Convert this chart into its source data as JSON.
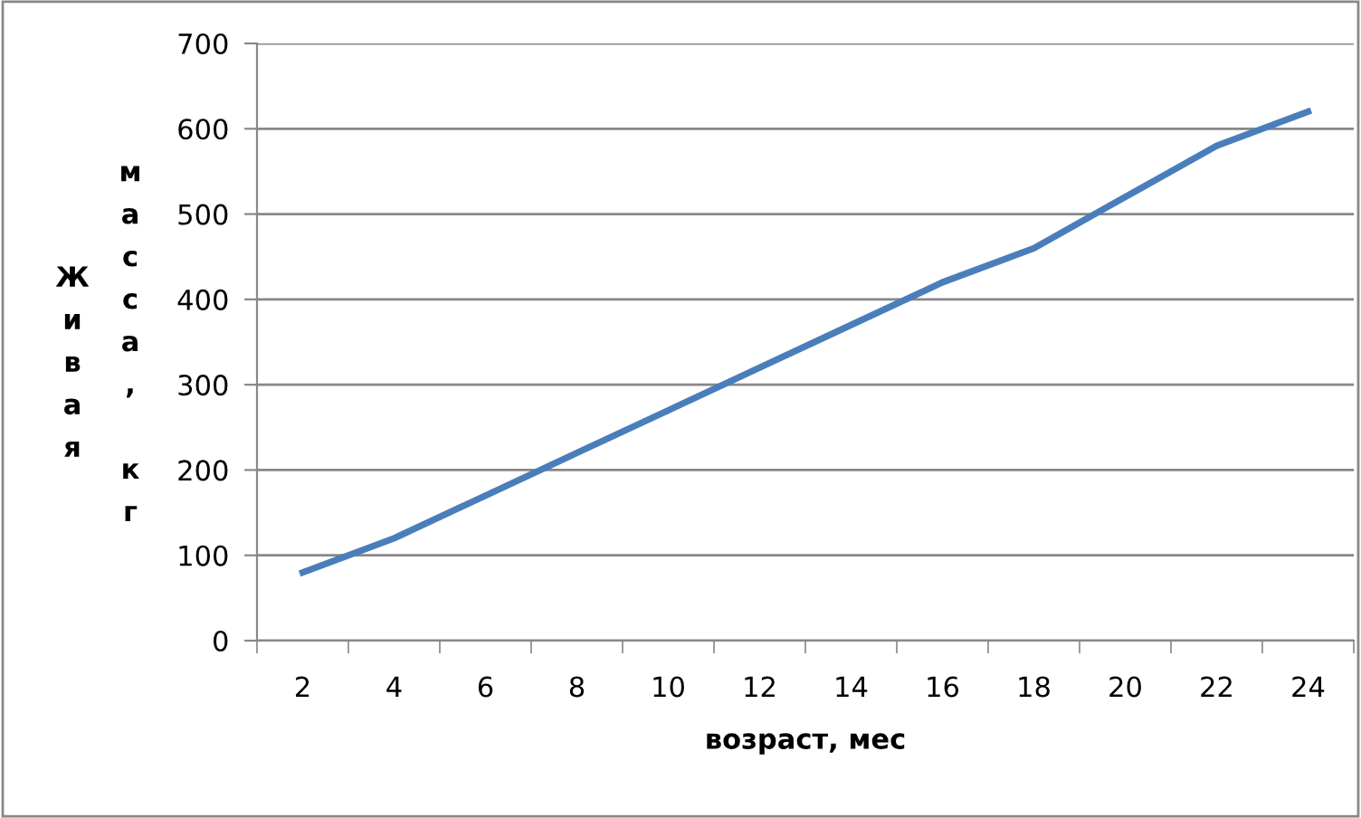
{
  "chart_data": {
    "type": "line",
    "xlabel": "возраст, мес",
    "ylabel": "Живая масса, кг",
    "categories": [
      "2",
      "4",
      "6",
      "8",
      "10",
      "12",
      "14",
      "16",
      "18",
      "20",
      "22",
      "24"
    ],
    "series": [
      {
        "color": "#4a7ebb",
        "values": [
          80,
          120,
          170,
          220,
          270,
          320,
          370,
          420,
          460,
          520,
          580,
          620
        ]
      }
    ],
    "ylim": [
      0,
      700
    ],
    "yticks": [
      0,
      100,
      200,
      300,
      400,
      500,
      600,
      700
    ],
    "grid": "y",
    "marker": "none",
    "line_style": "solid"
  }
}
